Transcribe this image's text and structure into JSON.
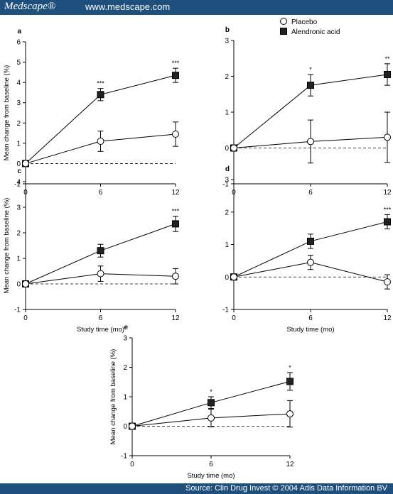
{
  "header": {
    "logo": "Medscape®",
    "url": "www.medscape.com"
  },
  "footer": {
    "source": "Source: Clin Drug Invest © 2004 Adis Data Information BV"
  },
  "legend": {
    "placebo": "Placebo",
    "alendronic": "Alendronic acid"
  },
  "chart_data": [
    {
      "type": "line",
      "panel": "a",
      "x": [
        0,
        6,
        12
      ],
      "xlim": [
        0,
        12
      ],
      "ylim": [
        -1,
        6
      ],
      "yticks": [
        -1,
        0,
        1,
        2,
        3,
        4,
        5,
        6
      ],
      "ylabel": "Mean change from baseline (%)",
      "xlabel": "",
      "series": [
        {
          "name": "Alendronic acid",
          "values": [
            0,
            3.4,
            4.35
          ],
          "errors": [
            0,
            0.3,
            0.35
          ]
        },
        {
          "name": "Placebo",
          "values": [
            0,
            1.1,
            1.45
          ],
          "errors": [
            0,
            0.5,
            0.6
          ]
        }
      ],
      "annotations": [
        {
          "x": 6,
          "text": "***"
        },
        {
          "x": 12,
          "text": "***"
        }
      ],
      "zero_line": "dashed"
    },
    {
      "type": "line",
      "panel": "b",
      "x": [
        0,
        6,
        12
      ],
      "xlim": [
        0,
        12
      ],
      "ylim": [
        -1,
        3
      ],
      "yticks": [
        -1,
        0,
        1,
        2,
        3
      ],
      "ylabel": "",
      "xlabel": "",
      "series": [
        {
          "name": "Alendronic acid",
          "values": [
            0,
            1.75,
            2.05
          ],
          "errors": [
            0,
            0.3,
            0.3
          ]
        },
        {
          "name": "Placebo",
          "values": [
            0,
            0.18,
            0.3
          ],
          "errors": [
            0,
            0.6,
            0.7
          ]
        }
      ],
      "annotations": [
        {
          "x": 6,
          "text": "*"
        },
        {
          "x": 12,
          "text": "**"
        }
      ],
      "zero_line": "dashed"
    },
    {
      "type": "line",
      "panel": "c",
      "x": [
        0,
        6,
        12
      ],
      "xlim": [
        0,
        12
      ],
      "ylim": [
        -1,
        4
      ],
      "yticks": [
        -1,
        0,
        1,
        2,
        3,
        4
      ],
      "ylabel": "Mean change from baseline (%)",
      "xlabel": "Study time (mo)",
      "series": [
        {
          "name": "Alendronic acid",
          "values": [
            0,
            1.3,
            2.35
          ],
          "errors": [
            0,
            0.25,
            0.3
          ]
        },
        {
          "name": "Placebo",
          "values": [
            0,
            0.4,
            0.3
          ],
          "errors": [
            0,
            0.3,
            0.3
          ]
        }
      ],
      "annotations": [
        {
          "x": 12,
          "text": "***"
        }
      ],
      "zero_line": "dashed"
    },
    {
      "type": "line",
      "panel": "d",
      "x": [
        0,
        6,
        12
      ],
      "xlim": [
        0,
        12
      ],
      "ylim": [
        -1,
        3
      ],
      "yticks": [
        -1,
        0,
        1,
        2,
        3
      ],
      "ylabel": "",
      "xlabel": "Study time (mo)",
      "series": [
        {
          "name": "Alendronic acid",
          "values": [
            0,
            1.1,
            1.7
          ],
          "errors": [
            0,
            0.22,
            0.22
          ]
        },
        {
          "name": "Placebo",
          "values": [
            0,
            0.45,
            -0.15
          ],
          "errors": [
            0,
            0.22,
            0.22
          ]
        }
      ],
      "annotations": [
        {
          "x": 12,
          "text": "***"
        }
      ],
      "zero_line": "dashed"
    },
    {
      "type": "line",
      "panel": "e",
      "x": [
        0,
        6,
        12
      ],
      "xlim": [
        0,
        12
      ],
      "ylim": [
        -1,
        3
      ],
      "yticks": [
        -1,
        0,
        1,
        2,
        3
      ],
      "ylabel": "Mean change from baseline (%)",
      "xlabel": "Study time (mo)",
      "series": [
        {
          "name": "Alendronic acid",
          "values": [
            0,
            0.8,
            1.52
          ],
          "errors": [
            0,
            0.2,
            0.3
          ]
        },
        {
          "name": "Placebo",
          "values": [
            0,
            0.28,
            0.42
          ],
          "errors": [
            0,
            0.3,
            0.45
          ]
        }
      ],
      "annotations": [
        {
          "x": 6,
          "text": "*"
        },
        {
          "x": 12,
          "text": "*"
        }
      ],
      "zero_line": "dashed"
    }
  ]
}
